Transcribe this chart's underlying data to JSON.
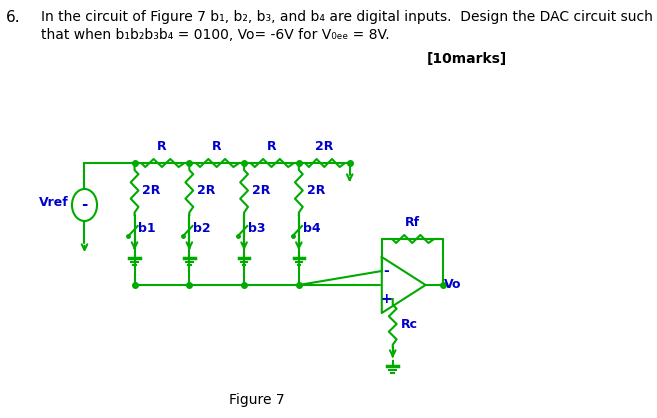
{
  "bg_color": "#ffffff",
  "circuit_color": "#00aa00",
  "text_color": "#0000cc",
  "black_text": "#000000",
  "title_text": "Figure 7",
  "question_line1": "In the circuit of Figure 7 b₁, b₂, b₃, and b₄ are digital inputs.  Design the DAC circuit such",
  "question_line2": "that when b₁b₂b₃b₄ = 0100, Vo= -6V for V₀ₑₑ = 8V.",
  "marks_text": "[10marks]",
  "question_num": "6.",
  "figsize": [
    6.57,
    4.18
  ],
  "dpi": 100
}
